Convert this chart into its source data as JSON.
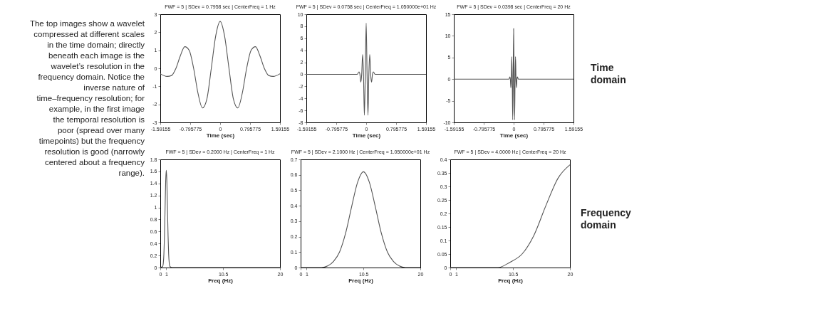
{
  "chart_data": [
    {
      "type": "line",
      "title": "FWF = 5 | SDev = 0.7958 sec | CenterFreq = 1 Hz",
      "xlabel": "Time (sec)",
      "xlim": [
        -1.59155,
        1.59155
      ],
      "xticks": [
        -1.59155,
        -0.795775,
        0,
        0.795775,
        1.59155
      ],
      "ylim": [
        -3,
        3
      ],
      "yticks": [
        -3,
        -2,
        -1,
        0,
        1,
        2,
        3
      ],
      "grid": false,
      "annotations": [
        "The top images show a wavelet compressed at different scales in the time domain; directly beneath each image is the wavelet’s resolution in the frequency domain. Notice the inverse nature of time–frequency resolution; for example, in the first image the temporal resolution is poor (spread over many timepoints) but the frequency resolution is good (narrowly centered about a frequency range)."
      ],
      "series": [
        {
          "color": "#555555",
          "x": [
            -1.59155,
            -1.41,
            -1.2925,
            -1.175,
            -1.0575,
            -0.94,
            -0.8225,
            -0.705,
            -0.5875,
            -0.47,
            -0.3525,
            -0.235,
            -0.1175,
            0,
            0.1175,
            0.235,
            0.3525,
            0.47,
            0.5875,
            0.705,
            0.8225,
            0.94,
            1.0575,
            1.175,
            1.2925,
            1.41,
            1.59155
          ],
          "values": [
            -0.3,
            -0.45,
            -0.4,
            0,
            0.7,
            1.2,
            1.0,
            0,
            -1.4,
            -2.2,
            -1.7,
            0,
            1.8,
            2.6,
            1.8,
            0,
            -1.7,
            -2.2,
            -1.4,
            0,
            1.0,
            1.2,
            0.7,
            0,
            -0.4,
            -0.45,
            -0.3
          ]
        }
      ]
    },
    {
      "type": "line",
      "title": "FWF = 5 | SDev = 0.0758 sec | CenterFreq = 1.050000e+01 Hz",
      "xlabel": "Time (sec)",
      "xlim": [
        -1.59155,
        1.59155
      ],
      "xticks": [
        -1.59155,
        -0.795775,
        0,
        0.795775,
        1.59155
      ],
      "ylim": [
        -8,
        10
      ],
      "yticks": [
        -8,
        -6,
        -4,
        -2,
        0,
        2,
        4,
        6,
        8,
        10
      ],
      "grid": false,
      "series": [
        {
          "color": "#555555",
          "x": [
            -1.59155,
            -0.238,
            -0.19,
            -0.167,
            -0.143,
            -0.119,
            -0.095,
            -0.071,
            -0.048,
            -0.024,
            0,
            0.024,
            0.048,
            0.071,
            0.095,
            0.119,
            0.143,
            0.167,
            0.19,
            0.238,
            1.59155
          ],
          "values": [
            0,
            0,
            0.4,
            0,
            -1.3,
            0,
            3.3,
            0,
            -6.8,
            0,
            8.5,
            0,
            -6.8,
            0,
            3.3,
            0,
            -1.3,
            0,
            0.4,
            0,
            0
          ]
        }
      ]
    },
    {
      "type": "line",
      "title": "FWF = 5 | SDev = 0.0398 sec | CenterFreq = 20 Hz",
      "xlabel": "Time (sec)",
      "xlim": [
        -1.59155,
        1.59155
      ],
      "xticks": [
        -1.59155,
        -0.795775,
        0,
        0.795775,
        1.59155
      ],
      "ylim": [
        -10,
        15
      ],
      "yticks": [
        -10,
        -5,
        0,
        5,
        10,
        15
      ],
      "grid": false,
      "annotations": [
        "Time domain"
      ],
      "series": [
        {
          "color": "#555555",
          "x": [
            -1.59155,
            -0.125,
            -0.1,
            -0.0875,
            -0.075,
            -0.0625,
            -0.05,
            -0.0375,
            -0.025,
            -0.0125,
            0,
            0.0125,
            0.025,
            0.0375,
            0.05,
            0.0625,
            0.075,
            0.0875,
            0.1,
            0.125,
            1.59155
          ],
          "values": [
            0,
            0,
            0.5,
            0,
            -2,
            0,
            5.2,
            0,
            -9.4,
            0,
            11.7,
            0,
            -9.4,
            0,
            5.2,
            0,
            -2,
            0,
            0.5,
            0,
            0
          ]
        }
      ]
    },
    {
      "type": "line",
      "title": "FWF = 5 | SDev = 0.2000 Hz | CenterFreq = 1 Hz",
      "xlabel": "Freq (Hz)",
      "xlim": [
        0,
        20
      ],
      "xticks": [
        0,
        1,
        10.5,
        20
      ],
      "ylim": [
        0,
        1.8
      ],
      "yticks": [
        0,
        0.2,
        0.4,
        0.6,
        0.8,
        1,
        1.2,
        1.4,
        1.6,
        1.8
      ],
      "grid": false,
      "series": [
        {
          "color": "#555555",
          "x": [
            0,
            0.4,
            0.5,
            0.6,
            0.7,
            0.8,
            0.9,
            1,
            1.1,
            1.2,
            1.3,
            1.4,
            1.5,
            1.6,
            2,
            20
          ],
          "values": [
            0,
            0.02,
            0.07,
            0.22,
            0.53,
            0.98,
            1.43,
            1.62,
            1.43,
            0.98,
            0.53,
            0.22,
            0.07,
            0.02,
            0,
            0
          ]
        }
      ]
    },
    {
      "type": "line",
      "title": "FWF = 5 | SDev = 2.1000 Hz | CenterFreq = 1.050000e+01 Hz",
      "xlabel": "Freq (Hz)",
      "xlim": [
        0,
        20
      ],
      "xticks": [
        0,
        1,
        10.5,
        20
      ],
      "ylim": [
        0,
        0.7
      ],
      "yticks": [
        0,
        0.1,
        0.2,
        0.3,
        0.4,
        0.5,
        0.6,
        0.7
      ],
      "grid": false,
      "series": [
        {
          "color": "#555555",
          "x": [
            0,
            2.5,
            3.5,
            4.5,
            5.5,
            6.5,
            7.5,
            8.5,
            9.5,
            10.5,
            11.5,
            12.5,
            13.5,
            14.5,
            15.5,
            16.5,
            17.5,
            18.5,
            20
          ],
          "values": [
            0,
            0,
            0,
            0.01,
            0.04,
            0.1,
            0.22,
            0.39,
            0.55,
            0.62,
            0.55,
            0.39,
            0.22,
            0.1,
            0.04,
            0.01,
            0,
            0,
            0
          ]
        }
      ]
    },
    {
      "type": "line",
      "title": "FWF = 5 | SDev = 4.0000 Hz | CenterFreq = 20 Hz",
      "xlabel": "Freq (Hz)",
      "xlim": [
        0,
        20
      ],
      "xticks": [
        0,
        1,
        10.5,
        20
      ],
      "ylim": [
        0,
        0.4
      ],
      "yticks": [
        0,
        0.05,
        0.1,
        0.15,
        0.2,
        0.25,
        0.3,
        0.35,
        0.4
      ],
      "grid": false,
      "annotations": [
        "Frequency domain"
      ],
      "series": [
        {
          "color": "#555555",
          "x": [
            0,
            4,
            6,
            8,
            10,
            12,
            14,
            16,
            18,
            20
          ],
          "values": [
            0,
            0,
            0,
            0,
            0.02,
            0.05,
            0.12,
            0.23,
            0.33,
            0.38
          ]
        }
      ]
    }
  ]
}
